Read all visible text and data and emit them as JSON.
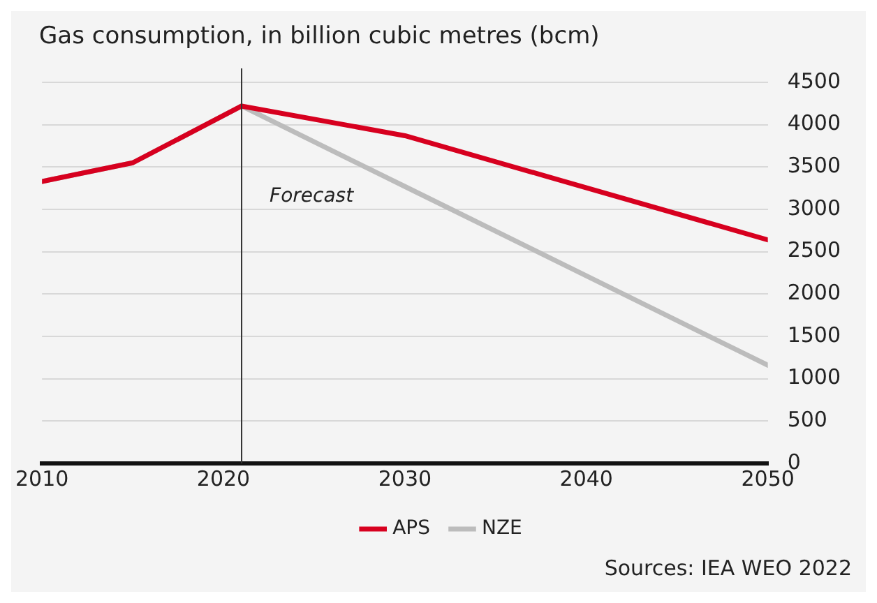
{
  "chart_data": {
    "type": "line",
    "title": "Gas consumption, in billion cubic metres (bcm)",
    "xlim": [
      2010,
      2050
    ],
    "xticks": [
      2010,
      2020,
      2030,
      2040,
      2050
    ],
    "ylim": [
      0,
      4500
    ],
    "yticks": [
      0,
      500,
      1000,
      1500,
      2000,
      2500,
      3000,
      3500,
      4000,
      4500
    ],
    "series": [
      {
        "name": "APS",
        "color": "#d7001f",
        "x": [
          2010,
          2015,
          2021,
          2030,
          2050
        ],
        "values": [
          3330,
          3550,
          4220,
          3870,
          2640
        ]
      },
      {
        "name": "NZE",
        "color": "#bcbcbc",
        "x": [
          2010,
          2015,
          2021,
          2030,
          2050
        ],
        "values": [
          3330,
          3550,
          4220,
          3270,
          1160
        ]
      }
    ],
    "ref_lines": [
      {
        "axis": "x",
        "value": 2021,
        "label": "Forecast",
        "color": "#333333"
      }
    ],
    "grid": "y",
    "legend": "bottom",
    "marker": "none",
    "line_style": "solid",
    "annotations": [
      "Sources: IEA WEO 2022"
    ]
  }
}
